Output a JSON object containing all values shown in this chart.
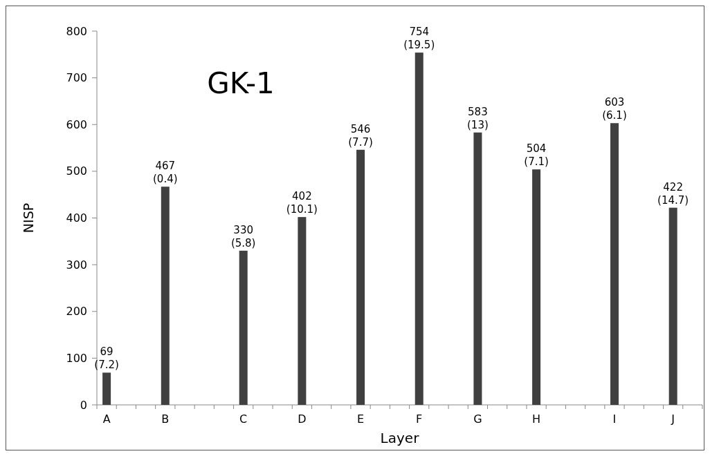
{
  "chart_data": {
    "type": "bar",
    "title": "GK-1",
    "xlabel": "Layer",
    "ylabel": "NISP",
    "categories": [
      "A",
      null,
      null,
      "B",
      null,
      null,
      null,
      "C",
      null,
      null,
      "D",
      null,
      null,
      "E",
      null,
      null,
      "F",
      null,
      null,
      "G",
      null,
      null,
      "H",
      null,
      null,
      null,
      "I",
      null,
      null,
      "J",
      null
    ],
    "values": [
      69,
      null,
      null,
      467,
      null,
      null,
      null,
      330,
      null,
      null,
      402,
      null,
      null,
      546,
      null,
      null,
      754,
      null,
      null,
      583,
      null,
      null,
      504,
      null,
      null,
      null,
      603,
      null,
      null,
      422,
      null
    ],
    "value_labels": [
      "69\n(7.2)",
      null,
      null,
      "467\n(0.4)",
      null,
      null,
      null,
      "330\n(5.8)",
      null,
      null,
      "402\n(10.1)",
      null,
      null,
      "546\n(7.7)",
      null,
      null,
      "754\n(19.5)",
      null,
      null,
      "583\n(13)",
      null,
      null,
      "504\n(7.1)",
      null,
      null,
      null,
      "603\n(6.1)",
      null,
      null,
      "422\n(14.7)",
      null
    ],
    "color": "#404040",
    "ylim": [
      0,
      800
    ],
    "yticks": [
      0,
      100,
      200,
      300,
      400,
      500,
      600,
      700,
      800
    ],
    "grid": false
  }
}
